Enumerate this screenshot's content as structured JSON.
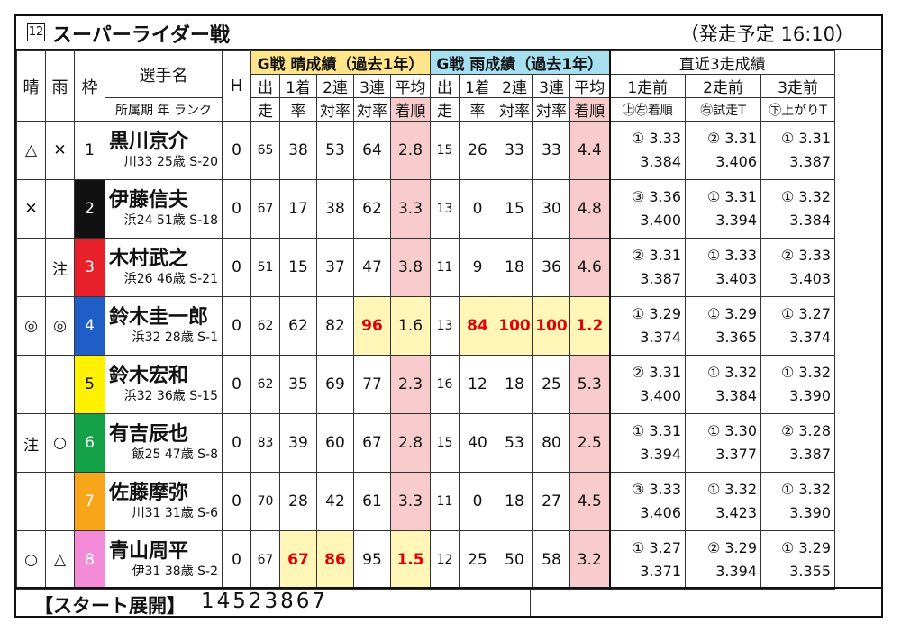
{
  "race": {
    "number": "12",
    "title": "スーパーライダー戦",
    "time": "（発走予定 16:10）"
  },
  "headers": {
    "sun": "晴",
    "rain": "雨",
    "waku": "枠",
    "name": "選手名",
    "name_sub": "所属期 年 ランク",
    "h": "H",
    "g_sun": "G戦 晴成績（過去1年）",
    "g_rain": "G戦 雨成績（過去1年）",
    "recent": "直近3走成績",
    "c1a": "出",
    "c1b": "走",
    "c2a": "1着",
    "c2b": "率",
    "c3a": "2連",
    "c3b": "対率",
    "c4a": "3連",
    "c4b": "対率",
    "c5a": "平均",
    "c5b": "着順",
    "r1": "1走前",
    "r2": "2走前",
    "r3": "3走前",
    "r1b": "㊤㊧着順",
    "r2b": "㊨試走T",
    "r3b": "㊦上がりT"
  },
  "riders": [
    {
      "sun": "△",
      "rain": "✕",
      "waku": "1",
      "name": "黒川京介",
      "info": "川33 25歳 S-20",
      "h": "0",
      "s_run": "65",
      "s_w": "38",
      "s_2": "53",
      "s_3": "64",
      "s_avg": "2.8",
      "r_run": "15",
      "r_w": "26",
      "r_2": "33",
      "r_3": "33",
      "r_avg": "4.4",
      "p1a": "① 3.33",
      "p1b": "3.384",
      "p2a": "② 3.31",
      "p2b": "3.406",
      "p3a": "① 3.31",
      "p3b": "3.387"
    },
    {
      "sun": "✕",
      "rain": "",
      "waku": "2",
      "name": "伊藤信夫",
      "info": "浜24 51歳 S-18",
      "h": "0",
      "s_run": "67",
      "s_w": "17",
      "s_2": "38",
      "s_3": "62",
      "s_avg": "3.3",
      "r_run": "13",
      "r_w": "0",
      "r_2": "15",
      "r_3": "30",
      "r_avg": "4.8",
      "p1a": "③ 3.36",
      "p1b": "3.400",
      "p2a": "① 3.31",
      "p2b": "3.394",
      "p3a": "① 3.32",
      "p3b": "3.384"
    },
    {
      "sun": "",
      "rain": "注",
      "waku": "3",
      "name": "木村武之",
      "info": "浜26 46歳 S-21",
      "h": "0",
      "s_run": "51",
      "s_w": "15",
      "s_2": "37",
      "s_3": "47",
      "s_avg": "3.8",
      "r_run": "11",
      "r_w": "9",
      "r_2": "18",
      "r_3": "36",
      "r_avg": "4.6",
      "p1a": "② 3.31",
      "p1b": "3.387",
      "p2a": "① 3.33",
      "p2b": "3.403",
      "p3a": "② 3.33",
      "p3b": "3.403"
    },
    {
      "sun": "◎",
      "rain": "◎",
      "waku": "4",
      "name": "鈴木圭一郎",
      "info": "浜32 28歳 S-1",
      "h": "0",
      "s_run": "62",
      "s_w": "62",
      "s_2": "82",
      "s_3": "96",
      "s_avg": "1.6",
      "r_run": "13",
      "r_w": "84",
      "r_2": "100",
      "r_3": "100",
      "r_avg": "1.2",
      "p1a": "① 3.29",
      "p1b": "3.374",
      "p2a": "① 3.29",
      "p2b": "3.365",
      "p3a": "① 3.27",
      "p3b": "3.374"
    },
    {
      "sun": "",
      "rain": "",
      "waku": "5",
      "name": "鈴木宏和",
      "info": "浜32 36歳 S-15",
      "h": "0",
      "s_run": "62",
      "s_w": "35",
      "s_2": "69",
      "s_3": "77",
      "s_avg": "2.3",
      "r_run": "16",
      "r_w": "12",
      "r_2": "18",
      "r_3": "25",
      "r_avg": "5.3",
      "p1a": "② 3.31",
      "p1b": "3.400",
      "p2a": "① 3.32",
      "p2b": "3.384",
      "p3a": "① 3.32",
      "p3b": "3.390"
    },
    {
      "sun": "注",
      "rain": "○",
      "waku": "6",
      "name": "有吉辰也",
      "info": "飯25 47歳 S-8",
      "h": "0",
      "s_run": "83",
      "s_w": "39",
      "s_2": "60",
      "s_3": "67",
      "s_avg": "2.8",
      "r_run": "15",
      "r_w": "40",
      "r_2": "53",
      "r_3": "80",
      "r_avg": "2.5",
      "p1a": "① 3.31",
      "p1b": "3.394",
      "p2a": "① 3.30",
      "p2b": "3.377",
      "p3a": "② 3.28",
      "p3b": "3.387"
    },
    {
      "sun": "",
      "rain": "",
      "waku": "7",
      "name": "佐藤摩弥",
      "info": "川31 31歳 S-6",
      "h": "0",
      "s_run": "70",
      "s_w": "28",
      "s_2": "42",
      "s_3": "61",
      "s_avg": "3.3",
      "r_run": "11",
      "r_w": "0",
      "r_2": "18",
      "r_3": "27",
      "r_avg": "4.5",
      "p1a": "③ 3.33",
      "p1b": "3.406",
      "p2a": "① 3.32",
      "p2b": "3.423",
      "p3a": "① 3.32",
      "p3b": "3.390"
    },
    {
      "sun": "○",
      "rain": "△",
      "waku": "8",
      "name": "青山周平",
      "info": "伊31 38歳 S-2",
      "h": "0",
      "s_run": "67",
      "s_w": "67",
      "s_2": "86",
      "s_3": "95",
      "s_avg": "1.5",
      "r_run": "12",
      "r_w": "25",
      "r_2": "50",
      "r_3": "58",
      "r_avg": "3.2",
      "p1a": "① 3.27",
      "p1b": "3.371",
      "p2a": "② 3.29",
      "p2b": "3.394",
      "p3a": "① 3.29",
      "p3b": "3.355"
    }
  ],
  "highlights": {
    "4": {
      "s_3": "yel-red",
      "s_avg": "yel",
      "r_w": "yel-red",
      "r_2": "yel-red",
      "r_3": "yel-red",
      "r_avg": "yel-red"
    },
    "8": {
      "s_w": "yel-red",
      "s_2": "yel-red",
      "s_avg": "yel-red"
    }
  },
  "footer": {
    "label": "【スタート展開】",
    "value": "14523867"
  }
}
